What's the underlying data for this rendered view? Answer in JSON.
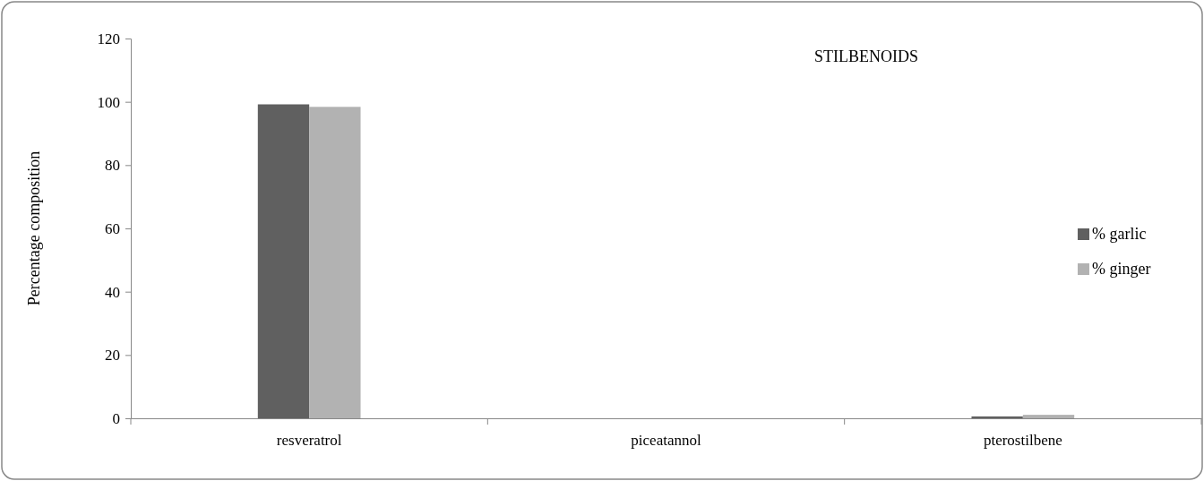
{
  "chart_data": {
    "type": "bar",
    "title": "STILBENOIDS",
    "ylabel": "Percentage composition",
    "categories": [
      "resveratrol",
      "piceatannol",
      "pterostilbene"
    ],
    "series": [
      {
        "name": "% garlic",
        "color": "#606060",
        "values": [
          99.2,
          null,
          0.6
        ]
      },
      {
        "name": "% ginger",
        "color": "#b2b2b2",
        "values": [
          98.4,
          null,
          1.1
        ]
      }
    ],
    "ylim": [
      0,
      120
    ],
    "yticks": [
      0,
      20,
      40,
      60,
      80,
      100,
      120
    ],
    "grid": false,
    "legend": "right"
  }
}
